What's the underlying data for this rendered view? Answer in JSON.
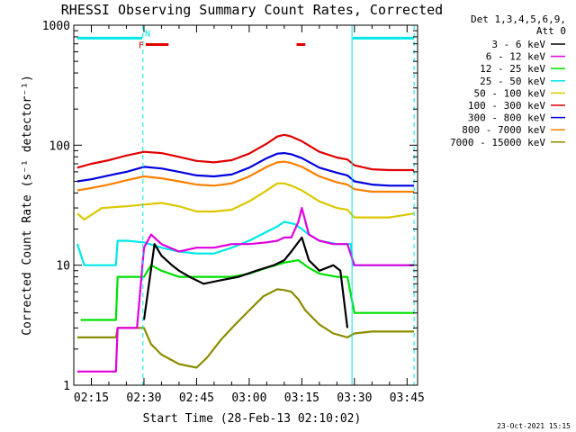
{
  "chart_data": {
    "type": "line",
    "title": "RHESSI Observing Summary Count Rates, Corrected",
    "xlabel": "Start Time (28-Feb-13 02:10:02)",
    "ylabel": "Corrected Count Rate (s⁻¹ detector⁻¹)",
    "x_unit": "minutes after 02:10:02",
    "xlim": [
      0,
      98
    ],
    "ylim": [
      1,
      1000
    ],
    "yscale": "log",
    "x_ticks": [
      {
        "value": 5,
        "label": "02:15"
      },
      {
        "value": 20,
        "label": "02:30"
      },
      {
        "value": 35,
        "label": "02:45"
      },
      {
        "value": 50,
        "label": "03:00"
      },
      {
        "value": 65,
        "label": "03:15"
      },
      {
        "value": 80,
        "label": "03:30"
      },
      {
        "value": 95,
        "label": "03:45"
      }
    ],
    "y_ticks": [
      {
        "value": 1,
        "label": "1"
      },
      {
        "value": 10,
        "label": "10"
      },
      {
        "value": 100,
        "label": "100"
      },
      {
        "value": 1000,
        "label": "1000"
      }
    ],
    "legend": {
      "header": [
        "Det 1,3,4,5,6,9,",
        "Att 0"
      ],
      "position": "right"
    },
    "series": [
      {
        "name": "3 - 6 keV",
        "color": "#000000",
        "x": [
          20,
          23,
          25,
          28,
          30,
          33,
          37,
          42,
          47,
          52,
          57,
          60,
          62,
          65,
          67,
          70,
          74,
          76,
          78
        ],
        "y": [
          3.5,
          15,
          12,
          10,
          9,
          8,
          7,
          7.5,
          8,
          9,
          10,
          11,
          13,
          17,
          11,
          9,
          10,
          9,
          3
        ]
      },
      {
        "name": "6 - 12 keV",
        "color": "#e000e0",
        "x": [
          1,
          12,
          12.5,
          18,
          20,
          22,
          25,
          30,
          35,
          40,
          45,
          50,
          55,
          58,
          60,
          62,
          64,
          65,
          67,
          70,
          74,
          78,
          80,
          85,
          90,
          97
        ],
        "y": [
          1.3,
          1.3,
          3,
          3,
          14,
          18,
          15,
          13,
          14,
          14,
          15,
          15,
          15.5,
          16,
          17,
          17,
          23,
          30,
          18,
          16,
          15,
          15,
          10,
          10,
          10,
          10
        ]
      },
      {
        "name": "12 - 25 keV",
        "color": "#00e000",
        "x": [
          2,
          12,
          12.5,
          20,
          22,
          25,
          30,
          35,
          40,
          45,
          50,
          55,
          60,
          64,
          67,
          70,
          75,
          78,
          80,
          85,
          90,
          97
        ],
        "y": [
          3.5,
          3.5,
          8,
          8,
          10,
          9,
          8,
          8,
          8,
          8,
          8.5,
          9.5,
          10.5,
          11,
          9.5,
          8.5,
          8,
          8,
          4,
          4,
          4,
          4
        ]
      },
      {
        "name": "25 - 50 keV",
        "color": "#00e8e8",
        "x": [
          1,
          3,
          12,
          12.5,
          15,
          20,
          25,
          30,
          35,
          40,
          45,
          50,
          55,
          58,
          60,
          63,
          65,
          67,
          70,
          75,
          79,
          79.5,
          85,
          90,
          97
        ],
        "y": [
          15,
          10,
          10,
          16,
          16,
          15.5,
          14,
          13,
          12.5,
          12.5,
          14,
          16,
          19,
          21,
          23,
          22,
          20,
          18,
          16,
          15,
          15,
          10,
          10,
          10,
          10
        ]
      },
      {
        "name": "50 - 100 keV",
        "color": "#dcc800",
        "x": [
          1,
          3,
          8,
          15,
          20,
          25,
          30,
          35,
          40,
          45,
          50,
          55,
          58,
          60,
          62,
          65,
          70,
          75,
          78,
          80,
          85,
          90,
          97
        ],
        "y": [
          27,
          24,
          30,
          31,
          32,
          33,
          31,
          28,
          28,
          29,
          34,
          42,
          48,
          48,
          46,
          42,
          34,
          30,
          29,
          25,
          25,
          25,
          27
        ]
      },
      {
        "name": "100 - 300 keV",
        "color": "#e00000",
        "x": [
          1,
          5,
          10,
          15,
          20,
          25,
          30,
          35,
          40,
          45,
          50,
          55,
          58,
          60,
          62,
          65,
          70,
          75,
          78,
          80,
          85,
          90,
          97
        ],
        "y": [
          65,
          70,
          75,
          82,
          88,
          86,
          80,
          74,
          72,
          75,
          85,
          103,
          118,
          122,
          118,
          108,
          88,
          79,
          76,
          68,
          63,
          62,
          62
        ]
      },
      {
        "name": "300 - 800 keV",
        "color": "#0000e0",
        "x": [
          1,
          5,
          10,
          15,
          20,
          25,
          30,
          35,
          40,
          45,
          50,
          55,
          58,
          60,
          62,
          65,
          70,
          75,
          78,
          80,
          85,
          90,
          97
        ],
        "y": [
          50,
          52,
          56,
          60,
          66,
          64,
          60,
          56,
          55,
          57,
          65,
          78,
          85,
          86,
          84,
          78,
          65,
          59,
          56,
          50,
          47,
          46,
          46
        ]
      },
      {
        "name": "800 - 7000 keV",
        "color": "#ff8000",
        "x": [
          1,
          5,
          10,
          15,
          20,
          25,
          30,
          35,
          40,
          45,
          50,
          55,
          58,
          60,
          62,
          65,
          70,
          75,
          78,
          80,
          85,
          90,
          97
        ],
        "y": [
          42,
          44,
          47,
          51,
          55,
          53,
          50,
          47,
          46,
          48,
          55,
          66,
          72,
          73,
          71,
          66,
          55,
          49,
          47,
          43,
          41,
          41,
          41
        ]
      },
      {
        "name": "7000 - 15000 keV",
        "color": "#8c8c00",
        "x": [
          1,
          12,
          12.5,
          20,
          22,
          25,
          30,
          35,
          38,
          42,
          46,
          50,
          54,
          58,
          60,
          62,
          64,
          66,
          70,
          74,
          78,
          80,
          85,
          90,
          97
        ],
        "y": [
          2.5,
          2.5,
          3,
          3,
          2.2,
          1.8,
          1.5,
          1.4,
          1.7,
          2.4,
          3.2,
          4.2,
          5.5,
          6.3,
          6.2,
          6,
          5.2,
          4.2,
          3.2,
          2.7,
          2.5,
          2.7,
          2.8,
          2.8,
          2.8
        ]
      }
    ],
    "markers": {
      "attenuator_state": {
        "label": "N",
        "color": "#00e8e8",
        "segments": [
          {
            "x0": 1,
            "x1": 19.5
          },
          {
            "x0": 79.5,
            "x1": 97
          }
        ],
        "y": 780
      },
      "flare_flags": {
        "label": "F",
        "color": "#e00000",
        "segments": [
          {
            "x0": 20.5,
            "x1": 27
          },
          {
            "x0": 63.5,
            "x1": 66
          }
        ],
        "y": 690
      },
      "dashed_verticals": [
        {
          "x": 19.7
        },
        {
          "x": 97
        }
      ],
      "solid_verticals": [
        {
          "x": 79.3
        }
      ]
    },
    "footer_timestamp": "23-Oct-2021 15:15"
  }
}
